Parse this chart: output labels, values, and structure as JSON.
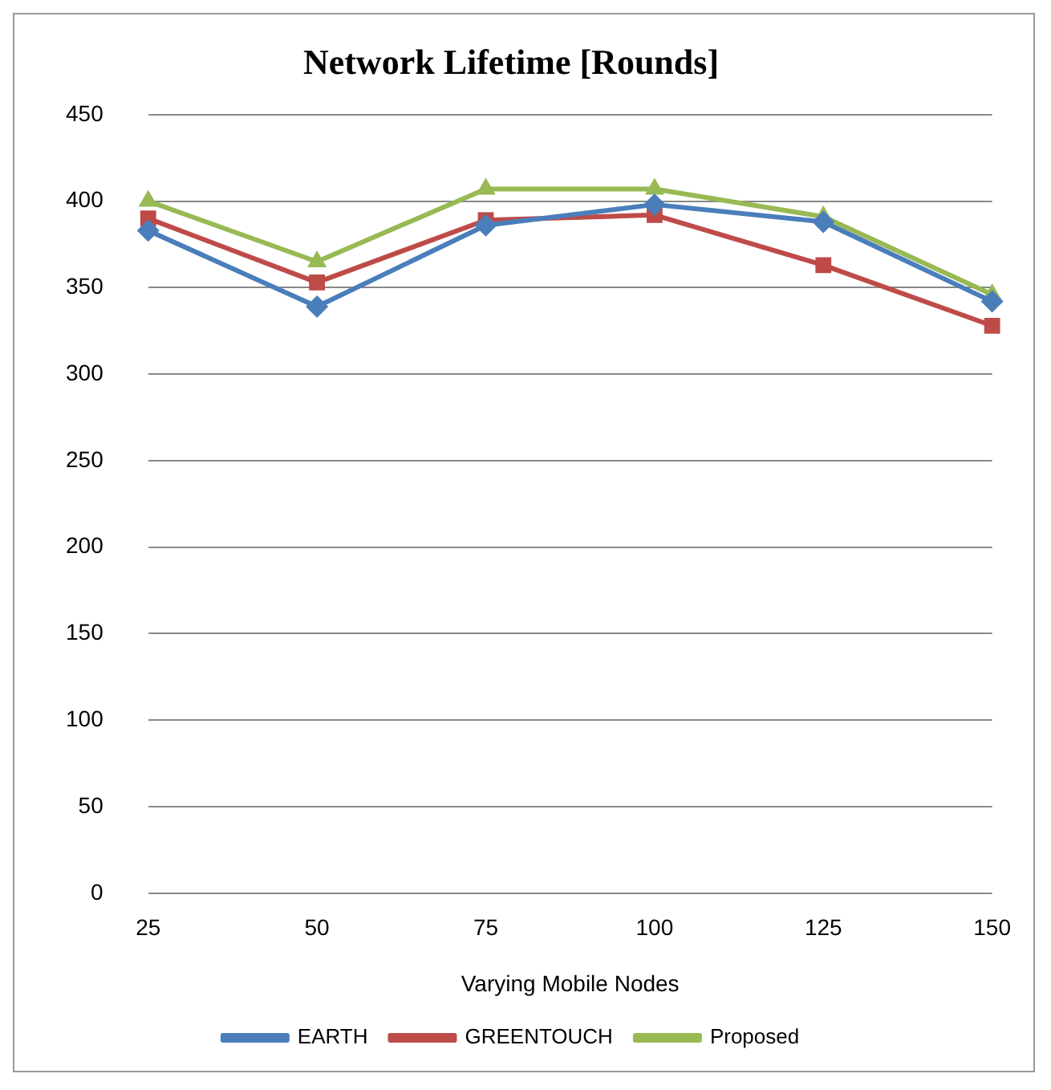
{
  "chart_data": {
    "type": "line",
    "title": "Network Lifetime [Rounds]",
    "xlabel": "Varying Mobile Nodes",
    "categories": [
      "25",
      "50",
      "75",
      "100",
      "125",
      "150"
    ],
    "series": [
      {
        "name": "EARTH",
        "color": "#4a7ebb",
        "marker": "diamond",
        "values": [
          383,
          339,
          386,
          398,
          388,
          342
        ]
      },
      {
        "name": "GREENTOUCH",
        "color": "#be4b48",
        "marker": "square",
        "values": [
          390,
          353,
          389,
          392,
          363,
          328
        ]
      },
      {
        "name": "Proposed",
        "color": "#98b954",
        "marker": "triangle",
        "values": [
          400,
          365,
          407,
          407,
          391,
          346
        ]
      }
    ],
    "ylim": [
      0,
      450
    ],
    "yticks": [
      0,
      50,
      100,
      150,
      200,
      250,
      300,
      350,
      400,
      450
    ],
    "grid": "y",
    "legend": "bottom"
  }
}
